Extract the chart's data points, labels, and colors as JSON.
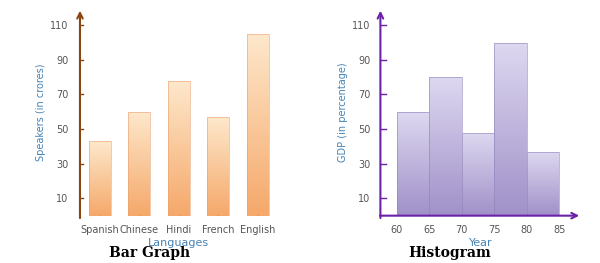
{
  "bar_categories": [
    "Spanish",
    "Chinese",
    "Hindi",
    "French",
    "English"
  ],
  "bar_values": [
    43,
    60,
    78,
    57,
    105
  ],
  "bar_ylabel": "Speakers (in crores)",
  "bar_xlabel": "Languages",
  "bar_title": "Bar Graph",
  "bar_yticks": [
    10,
    30,
    50,
    70,
    90,
    110
  ],
  "bar_ylim": [
    0,
    120
  ],
  "bar_axis_color": "#8B4513",
  "bar_color_bottom": "#F5A86A",
  "bar_color_top": "#FDE8CC",
  "hist_edges": [
    60,
    65,
    70,
    75,
    80,
    85
  ],
  "hist_values": [
    60,
    80,
    48,
    100,
    37
  ],
  "hist_ylabel": "GDP (in percentage)",
  "hist_xlabel": "Year",
  "hist_title": "Histogram",
  "hist_yticks": [
    10,
    30,
    50,
    70,
    90,
    110
  ],
  "hist_xticks": [
    60,
    65,
    70,
    75,
    80,
    85
  ],
  "hist_ylim": [
    0,
    120
  ],
  "hist_axis_color": "#6B21A8",
  "hist_color_bottom": "#A090C8",
  "hist_color_top": "#DDD8F0",
  "label_color": "#4682B4",
  "title_color": "#000000",
  "tick_label_color": "#555555",
  "tick_label_fontsize": 7,
  "ylabel_fontsize": 7,
  "xlabel_fontsize": 8,
  "title_fontsize": 10
}
